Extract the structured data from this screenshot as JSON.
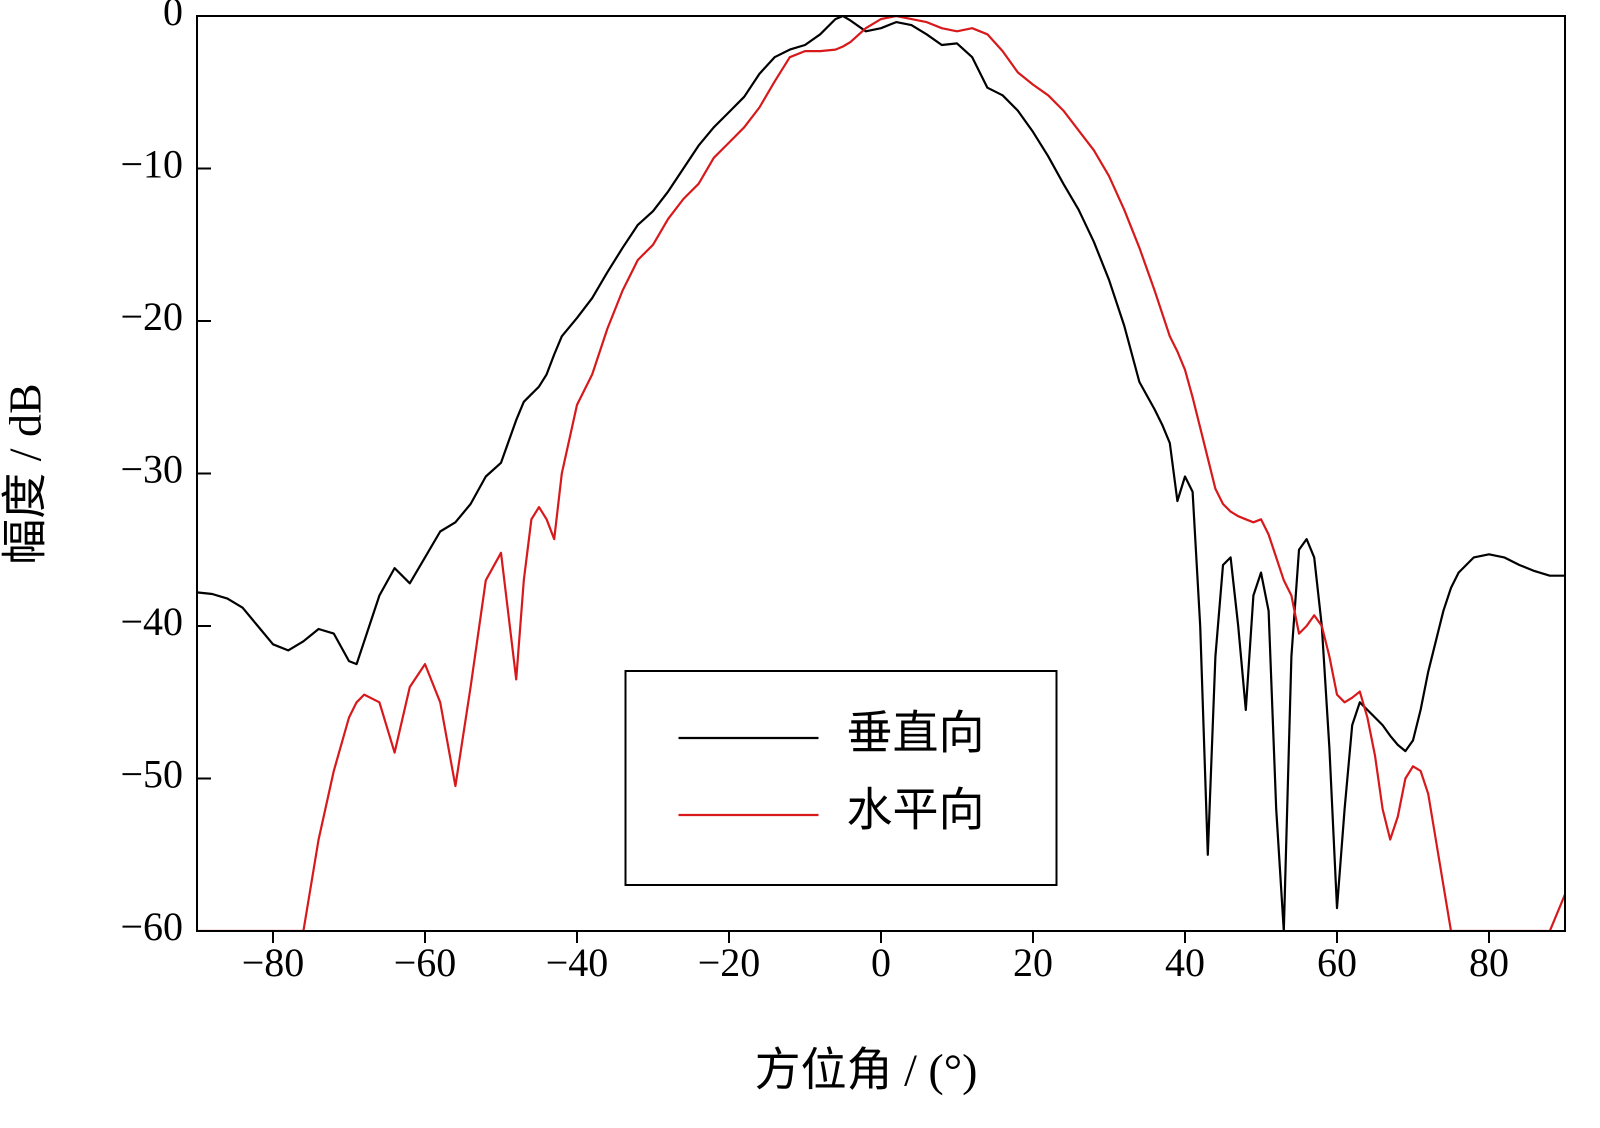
{
  "chart_data": {
    "type": "line",
    "xlabel": "方位角 / (°)",
    "ylabel": "幅度 / dB",
    "x": [
      -90,
      -88,
      -86,
      -84,
      -82,
      -80,
      -78,
      -76,
      -74,
      -72,
      -70,
      -69,
      -68,
      -66,
      -64,
      -62,
      -60,
      -58,
      -56,
      -54,
      -52,
      -50,
      -48,
      -47,
      -46,
      -45,
      -44,
      -43,
      -42,
      -40,
      -38,
      -36,
      -34,
      -32,
      -30,
      -28,
      -26,
      -24,
      -22,
      -20,
      -18,
      -16,
      -14,
      -12,
      -10,
      -8,
      -6,
      -5,
      -4,
      -2,
      0,
      2,
      4,
      6,
      8,
      10,
      12,
      14,
      16,
      18,
      20,
      22,
      24,
      26,
      28,
      30,
      32,
      34,
      36,
      37,
      38,
      39,
      40,
      41,
      42,
      43,
      44,
      45,
      46,
      47,
      48,
      49,
      50,
      51,
      52,
      53,
      54,
      55,
      56,
      57,
      58,
      59,
      60,
      61,
      62,
      63,
      64,
      65,
      66,
      67,
      68,
      69,
      70,
      71,
      72,
      73,
      74,
      75,
      76,
      78,
      80,
      82,
      84,
      86,
      88,
      90
    ],
    "series": [
      {
        "name": "垂直向",
        "color": "#000000",
        "values": [
          -37.8,
          -37.9,
          -38.2,
          -38.8,
          -40,
          -41.2,
          -41.6,
          -41,
          -40.2,
          -40.5,
          -42.3,
          -42.5,
          -41,
          -38,
          -36.2,
          -37.2,
          -35.5,
          -33.8,
          -33.2,
          -32,
          -30.2,
          -29.3,
          -26.5,
          -25.3,
          -24.8,
          -24.3,
          -23.5,
          -22.2,
          -21,
          -19.8,
          -18.5,
          -16.8,
          -15.2,
          -13.7,
          -12.8,
          -11.5,
          -10,
          -8.5,
          -7.3,
          -6.3,
          -5.3,
          -3.8,
          -2.7,
          -2.2,
          -1.9,
          -1.2,
          -0.2,
          0,
          -0.3,
          -1,
          -0.8,
          -0.4,
          -0.6,
          -1.2,
          -1.9,
          -1.8,
          -2.7,
          -4.7,
          -5.2,
          -6.2,
          -7.6,
          -9.2,
          -11,
          -12.7,
          -14.8,
          -17.3,
          -20.3,
          -24,
          -25.8,
          -26.8,
          -28,
          -31.8,
          -30.2,
          -31.2,
          -40,
          -55,
          -42,
          -36,
          -35.5,
          -40,
          -45.5,
          -38,
          -36.5,
          -39,
          -52,
          -60,
          -42,
          -35,
          -34.3,
          -35.5,
          -40,
          -48,
          -58.5,
          -52,
          -46.5,
          -45,
          -45.5,
          -46,
          -46.5,
          -47.2,
          -47.8,
          -48.2,
          -47.5,
          -45.5,
          -43,
          -41,
          -39,
          -37.5,
          -36.5,
          -35.5,
          -35.3,
          -35.5,
          -36,
          -36.4,
          -36.7,
          -36.7
        ]
      },
      {
        "name": "水平向",
        "color": "#d7191c",
        "values": [
          -60,
          -60,
          -60,
          -60,
          -60,
          -60,
          -60,
          -60,
          -54,
          -49.5,
          -46,
          -45,
          -44.5,
          -45,
          -48.3,
          -44,
          -42.5,
          -45,
          -50.5,
          -44,
          -37,
          -35.2,
          -43.5,
          -37,
          -33,
          -32.2,
          -33,
          -34.3,
          -30,
          -25.5,
          -23.5,
          -20.5,
          -18,
          -16,
          -15,
          -13.3,
          -12,
          -11,
          -9.3,
          -8.3,
          -7.3,
          -6,
          -4.3,
          -2.7,
          -2.3,
          -2.3,
          -2.2,
          -2,
          -1.7,
          -0.8,
          -0.2,
          0,
          -0.2,
          -0.4,
          -0.8,
          -1,
          -0.8,
          -1.2,
          -2.3,
          -3.7,
          -4.5,
          -5.2,
          -6.2,
          -7.5,
          -8.8,
          -10.5,
          -12.7,
          -15.2,
          -18,
          -19.5,
          -21,
          -22,
          -23.2,
          -25,
          -27,
          -29,
          -31,
          -32,
          -32.5,
          -32.8,
          -33,
          -33.2,
          -33,
          -34,
          -35.5,
          -37,
          -38,
          -40.5,
          -40,
          -39.3,
          -40,
          -42,
          -44.5,
          -45,
          -44.7,
          -44.3,
          -46,
          -48.5,
          -52,
          -54,
          -52.5,
          -50,
          -49.2,
          -49.5,
          -51,
          -54,
          -57,
          -60,
          -60,
          -60,
          -60,
          -60,
          -60,
          -60,
          -60,
          -57.6
        ]
      }
    ],
    "xlim": [
      -90,
      90
    ],
    "xticks": [
      {
        "value": -80,
        "label": "−80"
      },
      {
        "value": -60,
        "label": "−60"
      },
      {
        "value": -40,
        "label": "−40"
      },
      {
        "value": -20,
        "label": "−20"
      },
      0,
      20,
      40,
      60,
      80
    ],
    "ylim": [
      -60,
      0
    ],
    "yticks": [
      {
        "value": -60,
        "label": "−60"
      },
      {
        "value": -50,
        "label": "−50"
      },
      {
        "value": -40,
        "label": "−40"
      },
      {
        "value": -30,
        "label": "−30"
      },
      {
        "value": -20,
        "label": "−20"
      },
      {
        "value": -10,
        "label": "−10"
      },
      0
    ],
    "grid": false,
    "legend": "lower center"
  }
}
